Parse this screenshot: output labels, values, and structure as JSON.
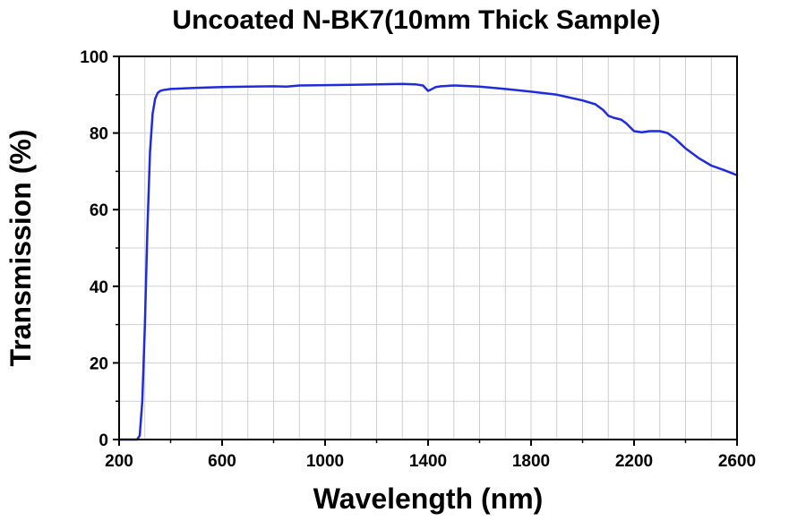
{
  "chart_data": {
    "type": "line",
    "title": "Uncoated N-BK7(10mm Thick Sample)",
    "xlabel": "Wavelength (nm)",
    "ylabel": "Transmission (%)",
    "xlim": [
      200,
      2600
    ],
    "ylim": [
      0,
      100
    ],
    "xticks": [
      200,
      600,
      1000,
      1400,
      1800,
      2200,
      2600
    ],
    "yticks": [
      0,
      20,
      40,
      60,
      80,
      100
    ],
    "grid": true,
    "line_color": "#1f2bdc",
    "series": [
      {
        "x": [
          200,
          270,
          280,
          290,
          300,
          310,
          320,
          330,
          340,
          350,
          360,
          370,
          380,
          400,
          500,
          600,
          700,
          800,
          850,
          900,
          1000,
          1100,
          1200,
          1300,
          1350,
          1380,
          1400,
          1410,
          1430,
          1450,
          1500,
          1600,
          1700,
          1800,
          1900,
          2000,
          2050,
          2080,
          2100,
          2120,
          2150,
          2170,
          2200,
          2230,
          2260,
          2300,
          2330,
          2360,
          2400,
          2450,
          2500,
          2550,
          2600
        ],
        "y": [
          0,
          0,
          1,
          10,
          30,
          55,
          75,
          85,
          89,
          90.5,
          91,
          91.2,
          91.3,
          91.5,
          91.8,
          92,
          92.1,
          92.2,
          92.1,
          92.4,
          92.5,
          92.6,
          92.7,
          92.8,
          92.7,
          92.4,
          91,
          91.3,
          92,
          92.2,
          92.4,
          92.1,
          91.5,
          90.8,
          90,
          88.5,
          87.5,
          86,
          84.5,
          84,
          83.5,
          82.5,
          80.5,
          80.2,
          80.5,
          80.5,
          80,
          78.5,
          76,
          73.5,
          71.5,
          70.3,
          69
        ]
      }
    ]
  }
}
